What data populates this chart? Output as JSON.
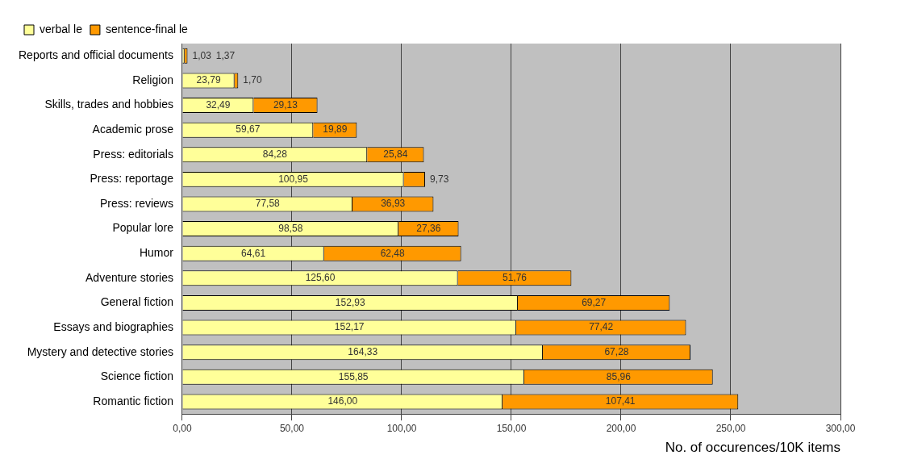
{
  "chart_data": {
    "type": "bar",
    "orientation": "horizontal",
    "stacked": true,
    "xlabel": "No. of occurences/10K items",
    "categories": [
      "Reports and official documents",
      "Religion",
      "Skills, trades and hobbies",
      "Academic prose",
      "Press: editorials",
      "Press: reportage",
      "Press: reviews",
      "Popular lore",
      "Humor",
      "Adventure stories",
      "General fiction",
      "Essays and biographies",
      "Mystery and detective stories",
      "Science fiction",
      "Romantic fiction"
    ],
    "series": [
      {
        "name": "verbal le",
        "color": "#ffff99",
        "values": [
          1.03,
          23.79,
          32.49,
          59.67,
          84.28,
          100.95,
          77.58,
          98.58,
          64.61,
          125.6,
          152.93,
          152.17,
          164.33,
          155.85,
          146.0
        ],
        "value_labels": [
          "1,03",
          "23,79",
          "32,49",
          "59,67",
          "84,28",
          "100,95",
          "77,58",
          "98,58",
          "64,61",
          "125,60",
          "152,93",
          "152,17",
          "164,33",
          "155,85",
          "146,00"
        ]
      },
      {
        "name": "sentence-final le",
        "color": "#ff9900",
        "values": [
          1.37,
          1.7,
          29.13,
          19.89,
          25.84,
          9.73,
          36.93,
          27.36,
          62.48,
          51.76,
          69.27,
          77.42,
          67.28,
          85.96,
          107.41
        ],
        "value_labels": [
          "1,37",
          "1,70",
          "29,13",
          "19,89",
          "25,84",
          "9,73",
          "36,93",
          "27,36",
          "62,48",
          "51,76",
          "69,27",
          "77,42",
          "67,28",
          "85,96",
          "107,41"
        ]
      }
    ],
    "xlim": [
      0,
      300
    ],
    "xticks": [
      {
        "value": 0,
        "label": "0,00"
      },
      {
        "value": 50,
        "label": "50,00"
      },
      {
        "value": 100,
        "label": "100,00"
      },
      {
        "value": 150,
        "label": "150,00"
      },
      {
        "value": 200,
        "label": "200,00"
      },
      {
        "value": 250,
        "label": "250,00"
      },
      {
        "value": 300,
        "label": "300,00"
      }
    ],
    "grid": "x",
    "legend": "top left"
  }
}
